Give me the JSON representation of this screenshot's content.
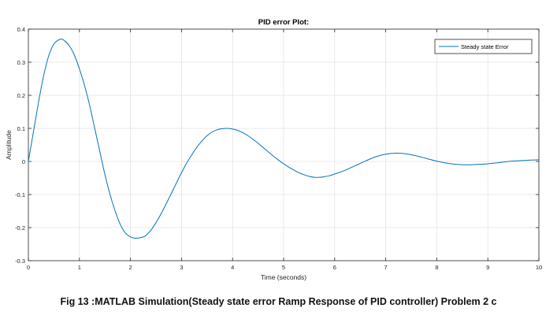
{
  "caption": "Fig 13 :MATLAB Simulation(Steady state error Ramp Response of PID controller) Problem 2 c",
  "chart_data": {
    "type": "line",
    "title": "PID error Plot:",
    "xlabel": "Time (seconds)",
    "ylabel": "Amplitude",
    "xlim": [
      0,
      10
    ],
    "ylim": [
      -0.3,
      0.4
    ],
    "xticks": [
      "0",
      "1",
      "2",
      "3",
      "4",
      "5",
      "6",
      "7",
      "8",
      "9",
      "10"
    ],
    "yticks": [
      "-0.3",
      "-0.2",
      "-0.1",
      "0",
      "0.1",
      "0.2",
      "0.3",
      "0.4"
    ],
    "grid": true,
    "legend_position": "top-right",
    "series": [
      {
        "name": "Steady state Error",
        "color": "#0072bd",
        "x": [
          0,
          0.1,
          0.2,
          0.3,
          0.4,
          0.5,
          0.6,
          0.65,
          0.7,
          0.8,
          0.9,
          1.0,
          1.1,
          1.2,
          1.3,
          1.4,
          1.5,
          1.6,
          1.7,
          1.8,
          1.9,
          2.0,
          2.1,
          2.2,
          2.25,
          2.3,
          2.4,
          2.5,
          2.6,
          2.7,
          2.8,
          2.9,
          3.0,
          3.1,
          3.2,
          3.3,
          3.4,
          3.5,
          3.6,
          3.7,
          3.8,
          3.9,
          4.0,
          4.1,
          4.2,
          4.3,
          4.4,
          4.5,
          4.6,
          4.7,
          4.8,
          4.9,
          5.0,
          5.1,
          5.2,
          5.3,
          5.4,
          5.5,
          5.6,
          5.7,
          5.8,
          5.9,
          6.0,
          6.2,
          6.4,
          6.6,
          6.8,
          7.0,
          7.2,
          7.4,
          7.6,
          7.8,
          8.0,
          8.2,
          8.4,
          8.6,
          8.8,
          9.0,
          9.2,
          9.4,
          9.6,
          9.8,
          10.0
        ],
        "y": [
          0,
          0.09,
          0.18,
          0.26,
          0.32,
          0.355,
          0.368,
          0.37,
          0.366,
          0.35,
          0.322,
          0.28,
          0.23,
          0.17,
          0.1,
          0.03,
          -0.04,
          -0.1,
          -0.15,
          -0.19,
          -0.216,
          -0.228,
          -0.232,
          -0.23,
          -0.228,
          -0.224,
          -0.208,
          -0.185,
          -0.158,
          -0.128,
          -0.097,
          -0.065,
          -0.034,
          -0.005,
          0.02,
          0.043,
          0.062,
          0.078,
          0.089,
          0.096,
          0.099,
          0.1,
          0.098,
          0.094,
          0.087,
          0.078,
          0.067,
          0.055,
          0.042,
          0.029,
          0.016,
          0.004,
          -0.007,
          -0.017,
          -0.026,
          -0.034,
          -0.04,
          -0.045,
          -0.048,
          -0.048,
          -0.046,
          -0.043,
          -0.038,
          -0.027,
          -0.013,
          0.001,
          0.014,
          0.022,
          0.025,
          0.023,
          0.017,
          0.009,
          0.001,
          -0.005,
          -0.009,
          -0.01,
          -0.009,
          -0.007,
          -0.004,
          0,
          0.002,
          0.004,
          0.005
        ]
      }
    ]
  }
}
